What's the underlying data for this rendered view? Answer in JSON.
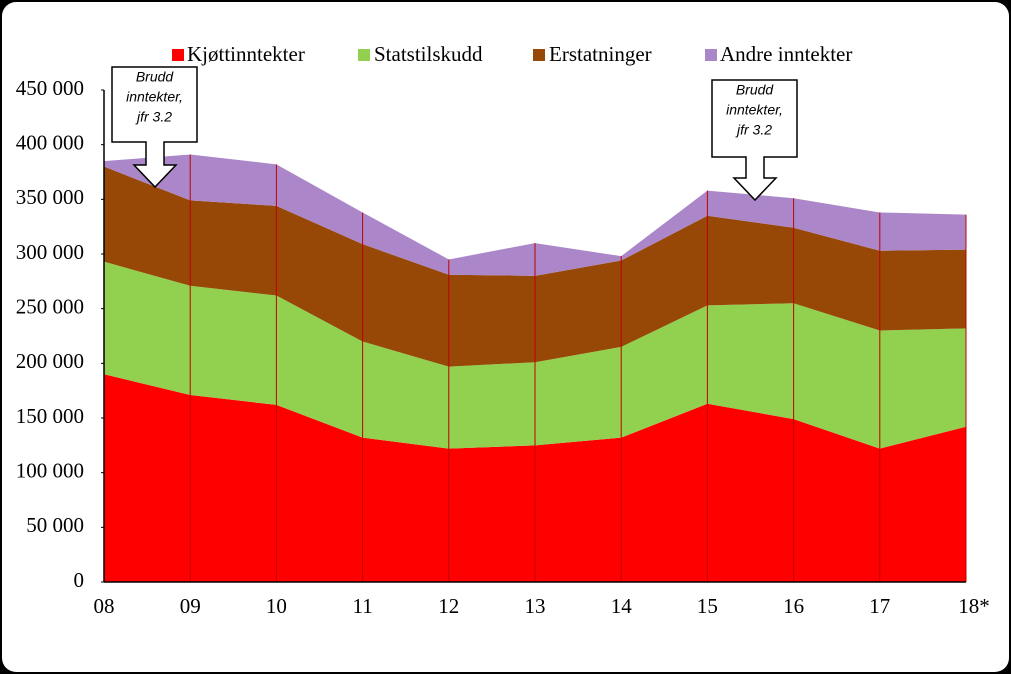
{
  "chart_data": {
    "type": "stacked-area",
    "categories": [
      "08",
      "09",
      "10",
      "11",
      "12",
      "13",
      "14",
      "15",
      "16",
      "17",
      "18*"
    ],
    "series": [
      {
        "name": "Kjøttinntekter",
        "color": "#ff0000",
        "values": [
          190000,
          171000,
          162000,
          132000,
          122000,
          125000,
          132000,
          163000,
          149000,
          122000,
          142000
        ]
      },
      {
        "name": "Statstilskudd",
        "color": "#92d050",
        "values": [
          103000,
          100000,
          100000,
          88000,
          75000,
          76000,
          83000,
          90000,
          106000,
          108000,
          90000
        ]
      },
      {
        "name": "Erstatninger",
        "color": "#974706",
        "values": [
          87000,
          78000,
          82000,
          89000,
          84000,
          79000,
          79000,
          82000,
          69000,
          73000,
          72000
        ]
      },
      {
        "name": "Andre inntekter",
        "color": "#ab86c9",
        "values": [
          5000,
          42000,
          38000,
          29000,
          14000,
          30000,
          4000,
          23000,
          27000,
          35000,
          32000
        ]
      }
    ],
    "ylim": [
      0,
      450000
    ],
    "yticks": [
      0,
      {
        "value": 50000,
        "label": "50 000"
      },
      {
        "value": 100000,
        "label": "100 000"
      },
      {
        "value": 150000,
        "label": "150 000"
      },
      {
        "value": 200000,
        "label": "200 000"
      },
      {
        "value": 250000,
        "label": "250 000"
      },
      {
        "value": 300000,
        "label": "300 000"
      },
      {
        "value": 350000,
        "label": "350 000"
      },
      {
        "value": 400000,
        "label": "400 000"
      },
      {
        "value": 450000,
        "label": "450 000"
      }
    ],
    "legend": "top",
    "annotations": [
      [
        "Brudd",
        "inntekter,",
        "jfr 3.2"
      ],
      [
        "Brudd",
        "inntekter,",
        "jfr 3.2"
      ]
    ]
  }
}
